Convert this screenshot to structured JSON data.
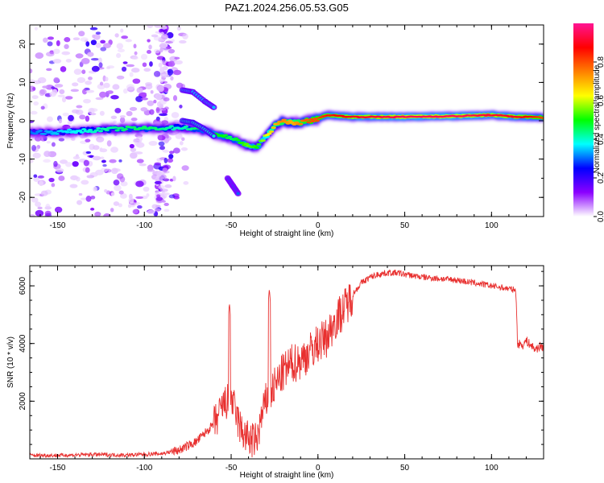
{
  "title": "PAZ1.2024.256.05.53.G05",
  "chart_data": [
    {
      "type": "heatmap",
      "xlabel": "Height of straight line (km)",
      "ylabel": "Frequency (Hz)",
      "xlim": [
        -166,
        130
      ],
      "ylim": [
        -25,
        25
      ],
      "xticks": [
        -150,
        -100,
        -50,
        0,
        50,
        100
      ],
      "yticks": [
        -20,
        -10,
        0,
        10,
        20
      ],
      "colorbar": {
        "label": "Normalized spectral amplitude",
        "range": [
          0,
          1
        ],
        "ticks": [
          0.0,
          0.2,
          0.4,
          0.6,
          0.8
        ],
        "tick_labels": [
          "0.0",
          "0.2",
          "0.4",
          "0.6",
          "0.8"
        ],
        "colormap": [
          "#ffffff",
          "#8b00ff",
          "#0000ff",
          "#00ffff",
          "#00ff00",
          "#ffff00",
          "#ff8000",
          "#ff0000",
          "#ff1493"
        ]
      },
      "ridge_x": [
        -166,
        -150,
        -130,
        -110,
        -95,
        -80,
        -70,
        -62,
        -55,
        -50,
        -45,
        -40,
        -35,
        -30,
        -25,
        -20,
        -15,
        -10,
        -5,
        0,
        5,
        20,
        50,
        80,
        100,
        115,
        125,
        130
      ],
      "ridge_y": [
        -3,
        -3,
        -2.5,
        -2,
        -2,
        -1.8,
        -2,
        -3,
        -4,
        -4.5,
        -5.5,
        -6.5,
        -7,
        -4,
        -1.5,
        0,
        -0.5,
        -0.5,
        0,
        0.5,
        1.5,
        1,
        1,
        1.2,
        1.5,
        1,
        1,
        0.8
      ],
      "ridge_amplitude": [
        0.3,
        0.35,
        0.4,
        0.45,
        0.45,
        0.4,
        0.45,
        0.5,
        0.5,
        0.45,
        0.5,
        0.55,
        0.5,
        0.6,
        0.7,
        0.75,
        0.7,
        0.75,
        0.8,
        0.8,
        0.85,
        0.9,
        0.95,
        0.95,
        0.92,
        0.9,
        0.85,
        0.8
      ],
      "secondary_features": [
        {
          "x": [
            -78,
            -72,
            -65,
            -60
          ],
          "y": [
            8,
            7.5,
            5,
            3.5
          ],
          "amplitude": 0.35
        },
        {
          "x": [
            -52,
            -49,
            -46
          ],
          "y": [
            -15,
            -17,
            -19
          ],
          "amplitude": 0.3
        },
        {
          "x": [
            -78,
            -72,
            -66,
            -60
          ],
          "y": [
            0,
            -0.5,
            -2,
            -4
          ],
          "amplitude": 0.4
        }
      ]
    },
    {
      "type": "line",
      "xlabel": "Height of straight line (km)",
      "ylabel": "SNR (10 * v/v)",
      "xlim": [
        -166,
        130
      ],
      "ylim": [
        0,
        6700
      ],
      "xticks": [
        -150,
        -100,
        -50,
        0,
        50,
        100
      ],
      "yticks": [
        2000,
        4000,
        6000
      ],
      "color": "#e8302f",
      "x": [
        -166,
        -150,
        -130,
        -110,
        -90,
        -80,
        -75,
        -70,
        -65,
        -60,
        -57,
        -55,
        -52,
        -50,
        -48,
        -45,
        -42,
        -40,
        -37,
        -35,
        -33,
        -30,
        -28,
        -25,
        -20,
        -15,
        -10,
        -5,
        0,
        5,
        10,
        15,
        20,
        25,
        30,
        35,
        40,
        45,
        50,
        55,
        60,
        70,
        80,
        90,
        100,
        110,
        114,
        115,
        118,
        120,
        125,
        128,
        130
      ],
      "y": [
        120,
        120,
        150,
        130,
        180,
        300,
        450,
        600,
        900,
        1200,
        1500,
        1800,
        2000,
        2100,
        1700,
        1100,
        800,
        700,
        600,
        700,
        1300,
        2000,
        2200,
        2500,
        3000,
        3300,
        3400,
        3700,
        4000,
        4200,
        4800,
        5200,
        5700,
        6100,
        6300,
        6400,
        6450,
        6450,
        6400,
        6350,
        6300,
        6250,
        6200,
        6100,
        6000,
        5900,
        5850,
        4000,
        3950,
        4100,
        3800,
        3900,
        3850
      ],
      "spikes": [
        {
          "x": -51,
          "y": 5400
        },
        {
          "x": -28,
          "y": 5900
        }
      ]
    }
  ]
}
